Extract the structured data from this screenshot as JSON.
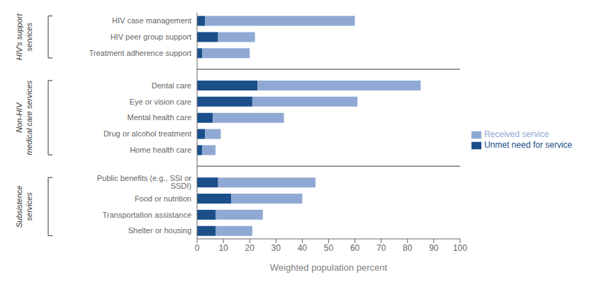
{
  "chart_data": {
    "type": "bar",
    "orientation": "horizontal",
    "stacked": true,
    "categories": [
      "HIV case management",
      "HIV peer group support",
      "Treatment adherence support",
      null,
      "Dental care",
      "Eye or vision care",
      "Mental health care",
      "Drug or alcohol treatment",
      "Home health care",
      null,
      "Public benefits (e.g., SSI or SSDI)",
      "Food or nutrition",
      "Transportation assistance",
      "Shelter or housing"
    ],
    "series": [
      {
        "name": "Unmet need for service",
        "color": "#1a4f8a",
        "values": [
          3,
          8,
          2,
          0,
          23,
          21,
          6,
          3,
          2,
          0,
          8,
          13,
          7,
          7
        ]
      },
      {
        "name": "Received service",
        "color": "#8fa9d4",
        "values": [
          57,
          14,
          18,
          0,
          62,
          40,
          27,
          6,
          5,
          0,
          37,
          27,
          18,
          14
        ]
      }
    ],
    "xlabel": "Weighted population percent",
    "xlim": [
      0,
      100
    ],
    "xticks": [
      0,
      10,
      20,
      30,
      40,
      50,
      60,
      70,
      80,
      90,
      100
    ],
    "annotations": [
      "HIV's support\nservices",
      "Non-HIV\nmedical care services",
      "Subsistence\nservices"
    ],
    "legend": "right",
    "grid": false
  }
}
